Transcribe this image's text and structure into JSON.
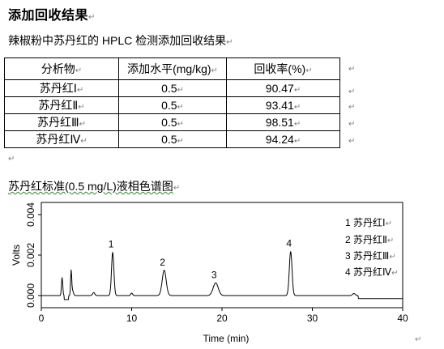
{
  "heading": "添加回收结果",
  "subtitle": "辣椒粉中苏丹红的 HPLC 检测添加回收结果",
  "table": {
    "headers": [
      "分析物",
      "添加水平(mg/kg)",
      "回收率(%)"
    ],
    "rows": [
      {
        "analyte": "苏丹红Ⅰ",
        "level": "0.5",
        "recovery": "90.47"
      },
      {
        "analyte": "苏丹红Ⅱ",
        "level": "0.5",
        "recovery": "93.41"
      },
      {
        "analyte": "苏丹红Ⅲ",
        "level": "0.5",
        "recovery": "98.51"
      },
      {
        "analyte": "苏丹红Ⅳ",
        "level": "0.5",
        "recovery": "94.24"
      }
    ]
  },
  "chart_caption": "苏丹红标准(0.5 mg/L)液相色谱图",
  "paragraph_mark": "↵",
  "chart_data": {
    "type": "line",
    "xlabel": "Time (min)",
    "ylabel": "Volts",
    "xlim": [
      0,
      40
    ],
    "ylim": [
      -0.0006,
      0.0046
    ],
    "x_ticks": [
      "0",
      "10",
      "20",
      "30",
      "40"
    ],
    "y_ticks": [
      "0.000",
      "0.002",
      "0.004"
    ],
    "peaks": [
      {
        "label": "1",
        "x": 7.9,
        "y": 0.00215
      },
      {
        "label": "2",
        "x": 13.6,
        "y": 0.00125
      },
      {
        "label": "3",
        "x": 19.3,
        "y": 0.00063
      },
      {
        "label": "4",
        "x": 27.6,
        "y": 0.00218
      }
    ],
    "legend": [
      "1 苏丹红Ⅰ",
      "2 苏丹红Ⅱ",
      "3 苏丹红Ⅲ",
      "4 苏丹红Ⅳ"
    ]
  }
}
